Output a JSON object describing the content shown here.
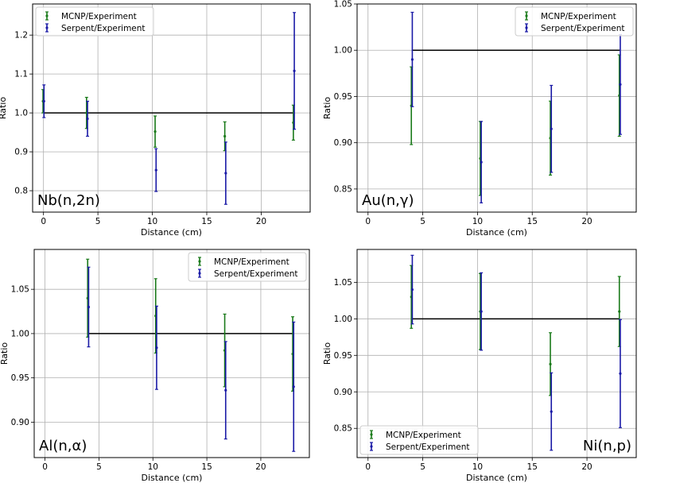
{
  "chart_data": [
    {
      "type": "scatter",
      "label": "Nb(n,2n)",
      "xlabel": "Distance (cm)",
      "ylabel": "Ratio",
      "xlim": [
        -1,
        24.5
      ],
      "ylim": [
        0.745,
        1.28
      ],
      "xticks": [
        0,
        5,
        10,
        15,
        20
      ],
      "yticks": [
        0.8,
        0.9,
        1.0,
        1.1,
        1.2
      ],
      "ytick_labels": [
        "0.8",
        "0.9",
        "1.0",
        "1.1",
        "1.2"
      ],
      "grid": true,
      "legend_position": "top-left",
      "reference_line": 1.0,
      "series": [
        {
          "name": "MCNP/Experiment",
          "color": "#1a7a1a",
          "points": [
            {
              "x": 0,
              "y": 1.03,
              "yerr": 0.03
            },
            {
              "x": 4,
              "y": 1.0,
              "yerr": 0.04
            },
            {
              "x": 10.3,
              "y": 0.952,
              "yerr": 0.04
            },
            {
              "x": 16.7,
              "y": 0.94,
              "yerr": 0.037
            },
            {
              "x": 23,
              "y": 0.975,
              "yerr": 0.045
            }
          ]
        },
        {
          "name": "Serpent/Experiment",
          "color": "#1a1aa6",
          "points": [
            {
              "x": 0,
              "y": 1.03,
              "yerr": 0.042
            },
            {
              "x": 4,
              "y": 0.985,
              "yerr": 0.045
            },
            {
              "x": 10.3,
              "y": 0.853,
              "yerr": 0.055
            },
            {
              "x": 16.7,
              "y": 0.845,
              "yerr": 0.08
            },
            {
              "x": 23,
              "y": 1.108,
              "yerr": 0.15
            }
          ]
        }
      ]
    },
    {
      "type": "scatter",
      "label": "Au(n,γ)",
      "xlabel": "Distance (cm)",
      "ylabel": "Ratio",
      "xlim": [
        -1,
        24.5
      ],
      "ylim": [
        0.825,
        1.05
      ],
      "xticks": [
        0,
        5,
        10,
        15,
        20
      ],
      "yticks": [
        0.85,
        0.9,
        0.95,
        1.0,
        1.05
      ],
      "ytick_labels": [
        "0.85",
        "0.90",
        "0.95",
        "1.00",
        "1.05"
      ],
      "grid": true,
      "legend_position": "top-right",
      "reference_line": 1.0,
      "series": [
        {
          "name": "MCNP/Experiment",
          "color": "#1a7a1a",
          "points": [
            {
              "x": 4,
              "y": 0.94,
              "yerr": 0.042
            },
            {
              "x": 10.3,
              "y": 0.883,
              "yerr": 0.04
            },
            {
              "x": 16.7,
              "y": 0.905,
              "yerr": 0.04
            },
            {
              "x": 23,
              "y": 0.951,
              "yerr": 0.044
            }
          ]
        },
        {
          "name": "Serpent/Experiment",
          "color": "#1a1aa6",
          "points": [
            {
              "x": 4,
              "y": 0.99,
              "yerr": 0.051
            },
            {
              "x": 10.3,
              "y": 0.879,
              "yerr": 0.044
            },
            {
              "x": 16.7,
              "y": 0.915,
              "yerr": 0.047
            },
            {
              "x": 23,
              "y": 0.963,
              "yerr": 0.054
            }
          ]
        }
      ]
    },
    {
      "type": "scatter",
      "label": "Al(n,α)",
      "xlabel": "Distance (cm)",
      "ylabel": "Ratio",
      "xlim": [
        -1,
        24.5
      ],
      "ylim": [
        0.86,
        1.095
      ],
      "xticks": [
        0,
        5,
        10,
        15,
        20
      ],
      "yticks": [
        0.9,
        0.95,
        1.0,
        1.05
      ],
      "ytick_labels": [
        "0.90",
        "0.95",
        "1.00",
        "1.05"
      ],
      "grid": true,
      "legend_position": "top-right",
      "reference_line": 1.0,
      "series": [
        {
          "name": "MCNP/Experiment",
          "color": "#1a7a1a",
          "points": [
            {
              "x": 4,
              "y": 1.04,
              "yerr": 0.044
            },
            {
              "x": 10.3,
              "y": 1.02,
              "yerr": 0.042
            },
            {
              "x": 16.7,
              "y": 0.981,
              "yerr": 0.041
            },
            {
              "x": 23,
              "y": 0.977,
              "yerr": 0.042
            }
          ]
        },
        {
          "name": "Serpent/Experiment",
          "color": "#1a1aa6",
          "points": [
            {
              "x": 4,
              "y": 1.03,
              "yerr": 0.045
            },
            {
              "x": 10.3,
              "y": 0.984,
              "yerr": 0.047
            },
            {
              "x": 16.7,
              "y": 0.936,
              "yerr": 0.055
            },
            {
              "x": 23,
              "y": 0.94,
              "yerr": 0.073
            }
          ]
        }
      ]
    },
    {
      "type": "scatter",
      "label": "Ni(n,p)",
      "xlabel": "Distance (cm)",
      "ylabel": "Ratio",
      "xlim": [
        -1,
        24.5
      ],
      "ylim": [
        0.81,
        1.095
      ],
      "xticks": [
        0,
        5,
        10,
        15,
        20
      ],
      "yticks": [
        0.85,
        0.9,
        0.95,
        1.0,
        1.05
      ],
      "ytick_labels": [
        "0.85",
        "0.90",
        "0.95",
        "1.00",
        "1.05"
      ],
      "grid": true,
      "legend_position": "bottom-left",
      "reference_line": 1.0,
      "series": [
        {
          "name": "MCNP/Experiment",
          "color": "#1a7a1a",
          "points": [
            {
              "x": 4,
              "y": 1.03,
              "yerr": 0.043
            },
            {
              "x": 10.3,
              "y": 1.01,
              "yerr": 0.052
            },
            {
              "x": 16.7,
              "y": 0.938,
              "yerr": 0.043
            },
            {
              "x": 23,
              "y": 1.01,
              "yerr": 0.048
            }
          ]
        },
        {
          "name": "Serpent/Experiment",
          "color": "#1a1aa6",
          "points": [
            {
              "x": 4,
              "y": 1.04,
              "yerr": 0.047
            },
            {
              "x": 10.3,
              "y": 1.01,
              "yerr": 0.053
            },
            {
              "x": 16.7,
              "y": 0.873,
              "yerr": 0.053
            },
            {
              "x": 23,
              "y": 0.925,
              "yerr": 0.074
            }
          ]
        }
      ]
    }
  ]
}
